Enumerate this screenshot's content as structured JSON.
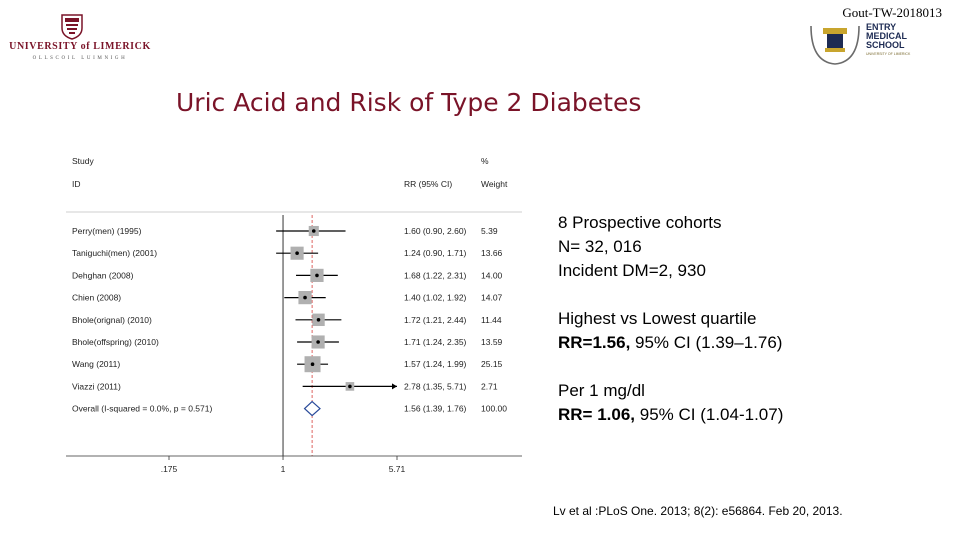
{
  "header": {
    "university_name": "UNIVERSITY of LIMERICK",
    "university_sub": "OLLSCOIL LUIMNIGH",
    "doc_code": "Gout-TW-2018013",
    "school_lines": [
      "ENTRY",
      "MEDICAL",
      "SCHOOL"
    ],
    "school_sub": "UNIVERSITY OF LIMERICK",
    "brand_color": "#7a1328"
  },
  "title": "Uric Acid and Risk of Type 2 Diabetes",
  "chart_data": {
    "type": "forest",
    "header_row1": {
      "study": "Study",
      "pct": "%"
    },
    "header_row2": {
      "id": "ID",
      "rr": "RR (95% CI)",
      "weight": "Weight"
    },
    "studies": [
      {
        "label": "Perry(men) (1995)",
        "rr": 1.6,
        "lo": 0.9,
        "hi": 2.6,
        "ci_text": "1.60 (0.90, 2.60)",
        "weight": 5.39,
        "weight_text": "5.39"
      },
      {
        "label": "Taniguchi(men) (2001)",
        "rr": 1.24,
        "lo": 0.9,
        "hi": 1.71,
        "ci_text": "1.24 (0.90, 1.71)",
        "weight": 13.66,
        "weight_text": "13.66"
      },
      {
        "label": "Dehghan (2008)",
        "rr": 1.68,
        "lo": 1.22,
        "hi": 2.31,
        "ci_text": "1.68 (1.22, 2.31)",
        "weight": 14.0,
        "weight_text": "14.00"
      },
      {
        "label": "Chien (2008)",
        "rr": 1.4,
        "lo": 1.02,
        "hi": 1.92,
        "ci_text": "1.40 (1.02, 1.92)",
        "weight": 14.07,
        "weight_text": "14.07"
      },
      {
        "label": "Bhole(orignal) (2010)",
        "rr": 1.72,
        "lo": 1.21,
        "hi": 2.44,
        "ci_text": "1.72 (1.21, 2.44)",
        "weight": 11.44,
        "weight_text": "11.44"
      },
      {
        "label": "Bhole(offspring) (2010)",
        "rr": 1.71,
        "lo": 1.24,
        "hi": 2.35,
        "ci_text": "1.71 (1.24, 2.35)",
        "weight": 13.59,
        "weight_text": "13.59"
      },
      {
        "label": "Wang (2011)",
        "rr": 1.57,
        "lo": 1.24,
        "hi": 1.99,
        "ci_text": "1.57 (1.24, 1.99)",
        "weight": 25.15,
        "weight_text": "25.15"
      },
      {
        "label": "Viazzi (2011)",
        "rr": 2.78,
        "lo": 1.35,
        "hi": 5.71,
        "ci_text": "2.78 (1.35, 5.71)",
        "weight": 2.71,
        "weight_text": "2.71"
      }
    ],
    "overall": {
      "label": "Overall  (I-squared = 0.0%, p = 0.571)",
      "rr": 1.56,
      "lo": 1.39,
      "hi": 1.76,
      "ci_text": "1.56 (1.39, 1.76)",
      "weight_text": "100.00"
    },
    "x_ticks": [
      {
        "value": 0.175,
        "label": ".175"
      },
      {
        "value": 1,
        "label": "1"
      },
      {
        "value": 5.71,
        "label": "5.71"
      }
    ],
    "x_scale": "log",
    "xlim": [
      0.175,
      5.71
    ],
    "overall_line_color": "#d9534f"
  },
  "notes": {
    "block1": [
      "8 Prospective cohorts",
      "N= 32, 016",
      "Incident DM=2, 930"
    ],
    "block2_line1": "Highest vs Lowest quartile",
    "block2_rr": "RR=1.56,",
    "block2_ci": " 95% CI (1.39–1.76)",
    "block3_line1": "Per 1 mg/dl",
    "block3_rr": "RR= 1.06,",
    "block3_ci": "  95% CI (1.04-1.07)"
  },
  "citation": "Lv et al :PLoS One. 2013; 8(2): e56864. Feb 20, 2013."
}
